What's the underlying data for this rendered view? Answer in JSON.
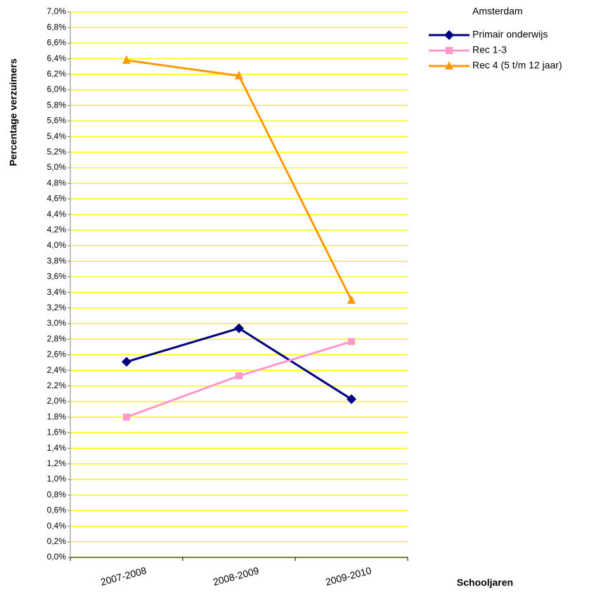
{
  "chart_data": {
    "type": "line",
    "y_label": "Percentage verzuimers",
    "x_label": "Schooljaren",
    "legend_title": "Amsterdam",
    "categories": [
      "2007-2008",
      "2008-2009",
      "2009-2010"
    ],
    "series": [
      {
        "name": "Primair onderwijs",
        "color": "#000080",
        "marker": "diamond",
        "values": [
          2.51,
          2.94,
          2.03
        ]
      },
      {
        "name": "Rec 1-3",
        "color": "#ff99cc",
        "marker": "square",
        "values": [
          1.8,
          2.33,
          2.77
        ]
      },
      {
        "name": "Rec 4 (5 t/m 12 jaar)",
        "color": "#ff9900",
        "marker": "triangle",
        "values": [
          6.38,
          6.18,
          3.3
        ]
      }
    ],
    "ylim": [
      0,
      7
    ],
    "yticks": [
      {
        "value": 0,
        "label": "0,0%"
      },
      {
        "value": 0.2,
        "label": "0,2%"
      },
      {
        "value": 0.4,
        "label": "0,4%"
      },
      {
        "value": 0.6,
        "label": "0,6%"
      },
      {
        "value": 0.8,
        "label": "0,8%"
      },
      {
        "value": 1.0,
        "label": "1,0%"
      },
      {
        "value": 1.2,
        "label": "1,2%"
      },
      {
        "value": 1.4,
        "label": "1,4%"
      },
      {
        "value": 1.6,
        "label": "1,6%"
      },
      {
        "value": 1.8,
        "label": "1,8%"
      },
      {
        "value": 2.0,
        "label": "2,0%"
      },
      {
        "value": 2.2,
        "label": "2,2%"
      },
      {
        "value": 2.4,
        "label": "2,4%"
      },
      {
        "value": 2.6,
        "label": "2,6%"
      },
      {
        "value": 2.8,
        "label": "2,8%"
      },
      {
        "value": 3.0,
        "label": "3,0%"
      },
      {
        "value": 3.2,
        "label": "3,2%"
      },
      {
        "value": 3.4,
        "label": "3,4%"
      },
      {
        "value": 3.6,
        "label": "3,6%"
      },
      {
        "value": 3.8,
        "label": "3,8%"
      },
      {
        "value": 4.0,
        "label": "4,0%"
      },
      {
        "value": 4.2,
        "label": "4,2%"
      },
      {
        "value": 4.4,
        "label": "4,4%"
      },
      {
        "value": 4.6,
        "label": "4,6%"
      },
      {
        "value": 4.8,
        "label": "4,8%"
      },
      {
        "value": 5.0,
        "label": "5,0%"
      },
      {
        "value": 5.2,
        "label": "5,2%"
      },
      {
        "value": 5.4,
        "label": "5,4%"
      },
      {
        "value": 5.6,
        "label": "5,6%"
      },
      {
        "value": 5.8,
        "label": "5,8%"
      },
      {
        "value": 6.0,
        "label": "6,0%"
      },
      {
        "value": 6.2,
        "label": "6,2%"
      },
      {
        "value": 6.4,
        "label": "6,4%"
      },
      {
        "value": 6.6,
        "label": "6,6%"
      },
      {
        "value": 6.8,
        "label": "6,8%"
      },
      {
        "value": 7.0,
        "label": "7,0%"
      }
    ],
    "grid": true,
    "grid_color": "#ffff00"
  }
}
